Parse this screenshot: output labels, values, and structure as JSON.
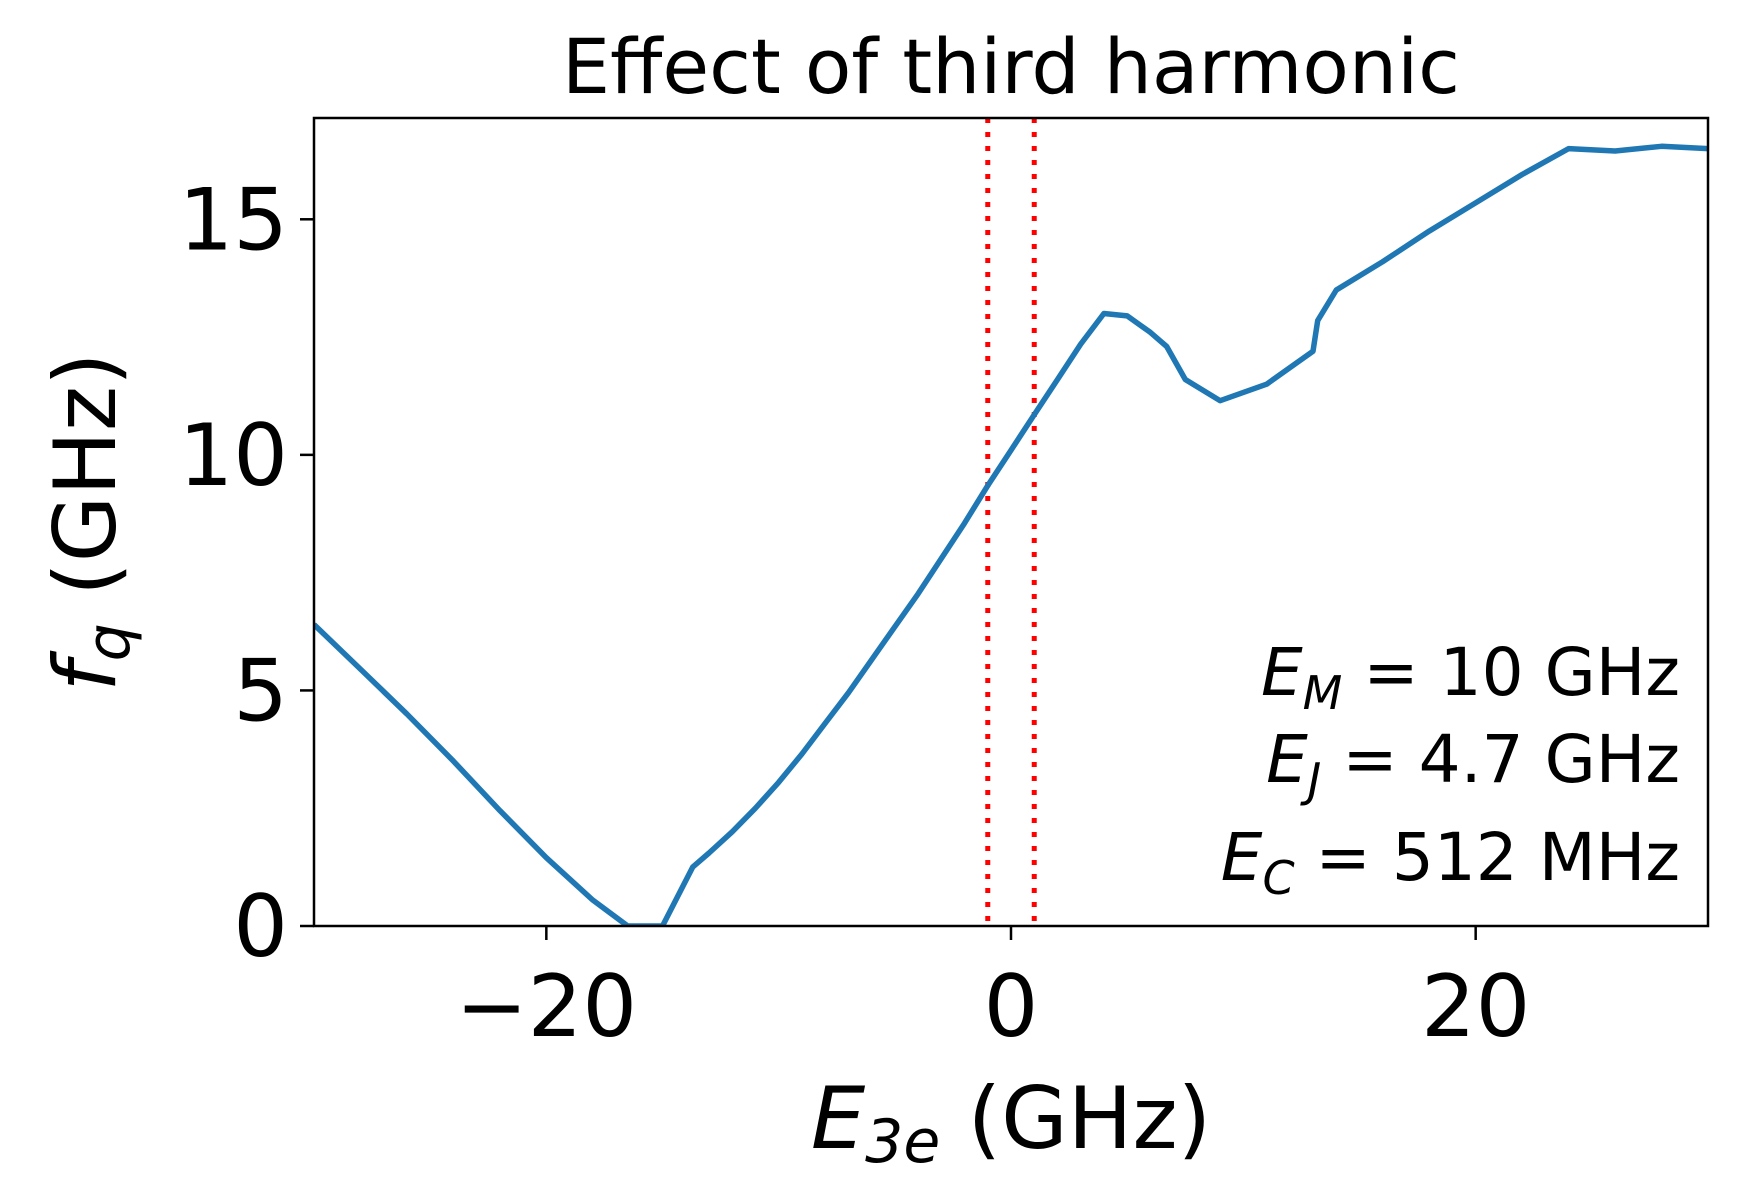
{
  "chart_data": {
    "type": "line",
    "title": "Effect of third harmonic",
    "xlabel": {
      "symbol": "E",
      "sub": "3e",
      "unit": " (GHz)"
    },
    "ylabel": {
      "symbol": "f",
      "sub": "q",
      "unit": " (GHz)"
    },
    "xlim": [
      -30,
      30
    ],
    "ylim": [
      0,
      17.15
    ],
    "xticks": [
      {
        "value": -20,
        "label": "−20"
      },
      {
        "value": 0,
        "label": "0"
      },
      {
        "value": 20,
        "label": "20"
      }
    ],
    "yticks": [
      {
        "value": 0,
        "label": "0"
      },
      {
        "value": 5,
        "label": "5"
      },
      {
        "value": 10,
        "label": "10"
      },
      {
        "value": 15,
        "label": "15"
      }
    ],
    "series": [
      {
        "color": "#1f77b4",
        "x": [
          -30,
          -28,
          -26,
          -24,
          -22,
          -20,
          -18,
          -16.5,
          -15.5,
          -15,
          -13.7,
          -13,
          -12,
          -11,
          -10,
          -9,
          -8,
          -7,
          -6,
          -5,
          -4,
          -3,
          -2,
          -1,
          0,
          1,
          2,
          3,
          4,
          5,
          6,
          6.7,
          7.5,
          9,
          11,
          13,
          13.2,
          14,
          16,
          18,
          20,
          22,
          24,
          26,
          28,
          30
        ],
        "y": [
          6.4,
          5.45,
          4.5,
          3.5,
          2.45,
          1.45,
          0.55,
          0.0,
          0.0,
          0.0,
          1.25,
          1.55,
          2.0,
          2.5,
          3.05,
          3.65,
          4.3,
          4.95,
          5.65,
          6.35,
          7.05,
          7.8,
          8.55,
          9.35,
          10.1,
          10.85,
          11.6,
          12.35,
          13.0,
          12.95,
          12.6,
          12.3,
          11.6,
          11.15,
          11.5,
          12.2,
          12.85,
          13.5,
          14.1,
          14.75,
          15.35,
          15.95,
          16.5,
          16.45,
          16.55,
          16.5
        ]
      }
    ],
    "vlines": [
      {
        "x": -1,
        "color": "#ff0000",
        "style": "dotted"
      },
      {
        "x": 1,
        "color": "#ff0000",
        "style": "dotted"
      }
    ],
    "annotations": [
      {
        "symbol": "E",
        "sub": "M",
        "text": " = 10 GHz"
      },
      {
        "symbol": "E",
        "sub": "J",
        "text": " = 4.7 GHz"
      },
      {
        "symbol": "E",
        "sub": "C",
        "text": " = 512 MHz"
      }
    ],
    "grid": false,
    "legend": "none"
  }
}
